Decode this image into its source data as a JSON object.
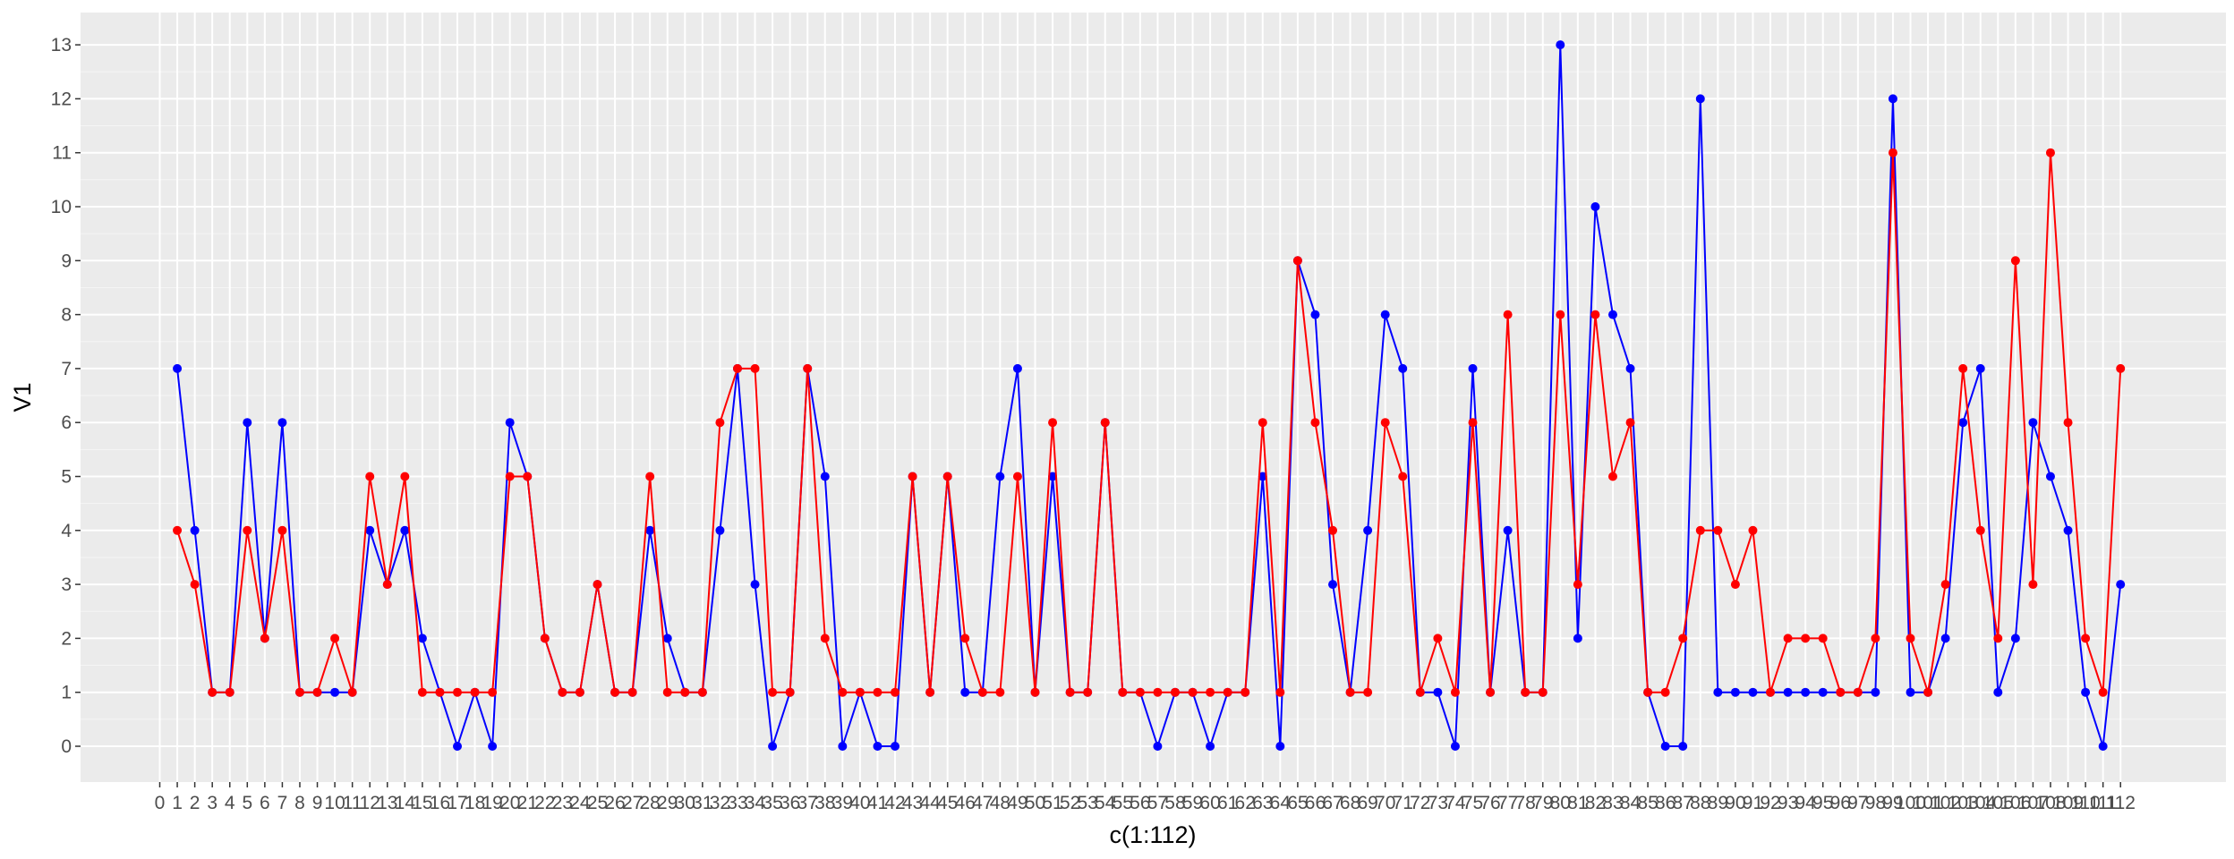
{
  "chart_data": {
    "type": "line",
    "title": "",
    "xlabel": "c(1:112)",
    "ylabel": "V1",
    "x": [
      1,
      2,
      3,
      4,
      5,
      6,
      7,
      8,
      9,
      10,
      11,
      12,
      13,
      14,
      15,
      16,
      17,
      18,
      19,
      20,
      21,
      22,
      23,
      24,
      25,
      26,
      27,
      28,
      29,
      30,
      31,
      32,
      33,
      34,
      35,
      36,
      37,
      38,
      39,
      40,
      41,
      42,
      43,
      44,
      45,
      46,
      47,
      48,
      49,
      50,
      51,
      52,
      53,
      54,
      55,
      56,
      57,
      58,
      59,
      60,
      61,
      62,
      63,
      64,
      65,
      66,
      67,
      68,
      69,
      70,
      71,
      72,
      73,
      74,
      75,
      76,
      77,
      78,
      79,
      80,
      81,
      82,
      83,
      84,
      85,
      86,
      87,
      88,
      89,
      90,
      91,
      92,
      93,
      94,
      95,
      96,
      97,
      98,
      99,
      100,
      101,
      102,
      103,
      104,
      105,
      106,
      107,
      108,
      109,
      110,
      111,
      112
    ],
    "xlim": [
      0,
      112
    ],
    "ylim": [
      0,
      13
    ],
    "x_ticks": [
      0,
      1,
      2,
      3,
      4,
      5,
      6,
      7,
      8,
      9,
      10,
      11,
      12,
      13,
      14,
      15,
      16,
      17,
      18,
      19,
      20,
      21,
      22,
      23,
      24,
      25,
      26,
      27,
      28,
      29,
      30,
      31,
      32,
      33,
      34,
      35,
      36,
      37,
      38,
      39,
      40,
      41,
      42,
      43,
      44,
      45,
      46,
      47,
      48,
      49,
      50,
      51,
      52,
      53,
      54,
      55,
      56,
      57,
      58,
      59,
      60,
      61,
      62,
      63,
      64,
      65,
      66,
      67,
      68,
      69,
      70,
      71,
      72,
      73,
      74,
      75,
      76,
      77,
      78,
      79,
      80,
      81,
      82,
      83,
      84,
      85,
      86,
      87,
      88,
      89,
      90,
      91,
      92,
      93,
      94,
      95,
      96,
      97,
      98,
      99,
      100,
      101,
      102,
      103,
      104,
      105,
      106,
      107,
      108,
      109,
      110,
      111,
      112
    ],
    "y_ticks": [
      0,
      1,
      2,
      3,
      4,
      5,
      6,
      7,
      8,
      9,
      10,
      11,
      12,
      13
    ],
    "grid": true,
    "legend": "none",
    "series": [
      {
        "color": "#0000FF",
        "values": [
          7,
          4,
          1,
          1,
          6,
          2,
          6,
          1,
          1,
          1,
          1,
          4,
          3,
          4,
          2,
          1,
          0,
          1,
          0,
          6,
          5,
          2,
          1,
          1,
          3,
          1,
          1,
          4,
          2,
          1,
          1,
          4,
          7,
          3,
          0,
          1,
          7,
          5,
          0,
          1,
          0,
          0,
          5,
          1,
          5,
          1,
          1,
          5,
          7,
          1,
          5,
          1,
          1,
          6,
          1,
          1,
          0,
          1,
          1,
          0,
          1,
          1,
          5,
          0,
          9,
          8,
          3,
          1,
          4,
          8,
          7,
          1,
          1,
          0,
          7,
          1,
          4,
          1,
          1,
          13,
          2,
          10,
          8,
          7,
          1,
          0,
          0,
          12,
          1,
          1,
          1,
          1,
          1,
          1,
          1,
          1,
          1,
          1,
          12,
          1,
          1,
          2,
          6,
          7,
          1,
          2,
          6,
          5,
          4,
          1,
          0,
          3
        ]
      },
      {
        "color": "#FF0000",
        "values": [
          4,
          3,
          1,
          1,
          4,
          2,
          4,
          1,
          1,
          2,
          1,
          5,
          3,
          5,
          1,
          1,
          1,
          1,
          1,
          5,
          5,
          2,
          1,
          1,
          3,
          1,
          1,
          5,
          1,
          1,
          1,
          6,
          7,
          7,
          1,
          1,
          7,
          2,
          1,
          1,
          1,
          1,
          5,
          1,
          5,
          2,
          1,
          1,
          5,
          1,
          6,
          1,
          1,
          6,
          1,
          1,
          1,
          1,
          1,
          1,
          1,
          1,
          6,
          1,
          9,
          6,
          4,
          1,
          1,
          6,
          5,
          1,
          2,
          1,
          6,
          1,
          8,
          1,
          1,
          8,
          3,
          8,
          5,
          6,
          1,
          1,
          2,
          4,
          4,
          3,
          4,
          1,
          2,
          2,
          2,
          1,
          1,
          2,
          11,
          2,
          1,
          3,
          7,
          4,
          2,
          9,
          3,
          11,
          6,
          2,
          1,
          7
        ]
      }
    ]
  }
}
